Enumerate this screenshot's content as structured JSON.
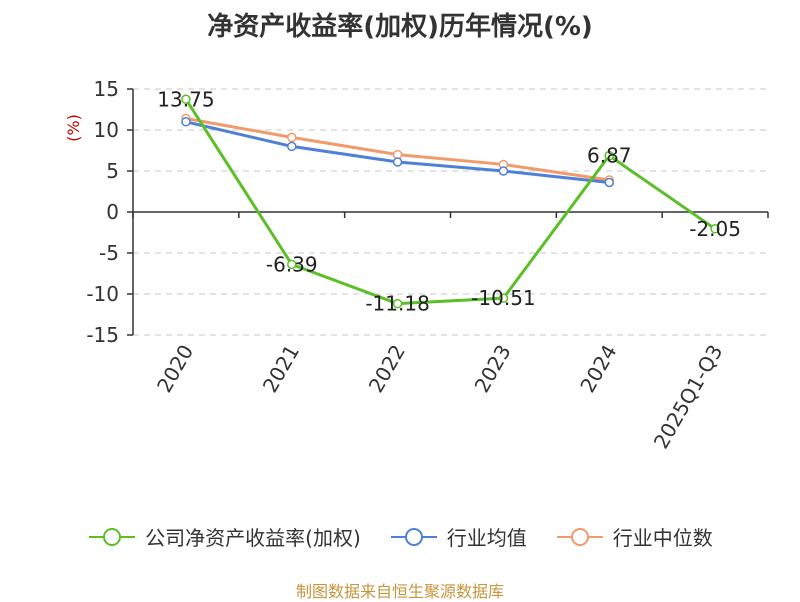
{
  "chart_data": {
    "type": "line",
    "title": "净资产收益率(加权)历年情况(%)",
    "ylabel": "(%)",
    "xlabel": "",
    "categories": [
      "2020",
      "2021",
      "2022",
      "2023",
      "2024",
      "2025Q1-Q3"
    ],
    "ylim": [
      -15,
      15
    ],
    "yticks": [
      15,
      10,
      5,
      0,
      -5,
      -10,
      -15
    ],
    "grid": true,
    "legend_position": "bottom",
    "series": [
      {
        "name": "公司净资产收益率(加权)",
        "color": "#5cbf27",
        "values": [
          13.75,
          -6.39,
          -11.18,
          -10.51,
          6.87,
          -2.05
        ],
        "labels": [
          "13.75",
          "-6.39",
          "-11.18",
          "-10.51",
          "6.87",
          "-2.05"
        ]
      },
      {
        "name": "行业均值",
        "color": "#4e80d8",
        "values": [
          11.0,
          8.0,
          6.1,
          5.0,
          3.6,
          null
        ]
      },
      {
        "name": "行业中位数",
        "color": "#f29a6a",
        "values": [
          11.4,
          9.1,
          7.0,
          5.8,
          3.9,
          null
        ]
      }
    ]
  },
  "footer": "制图数据来自恒生聚源数据库"
}
